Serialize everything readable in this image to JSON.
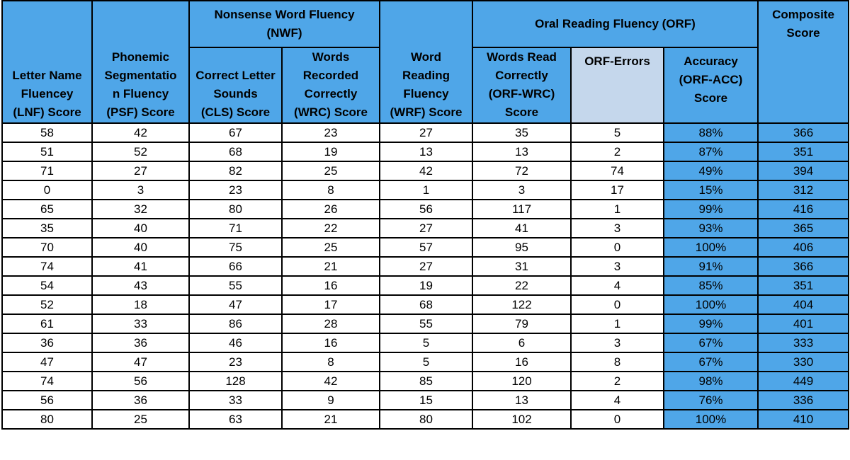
{
  "table": {
    "group_headers": {
      "nwf": "Nonsense Word Fluency\n(NWF)",
      "orf": "Oral Reading Fluency (ORF)"
    },
    "columns": [
      {
        "key": "lnf",
        "label": "Letter Name\nFluencey\n(LNF) Score"
      },
      {
        "key": "psf",
        "label": "Phonemic\nSegmentatio\nn Fluency\n(PSF) Score"
      },
      {
        "key": "cls",
        "label": "Correct Letter\nSounds\n(CLS) Score"
      },
      {
        "key": "wrc",
        "label": "Words\nRecorded\nCorrectly\n(WRC) Score"
      },
      {
        "key": "wrf",
        "label": "Word\nReading\nFluency\n(WRF) Score"
      },
      {
        "key": "orf_wrc",
        "label": "Words Read\nCorrectly\n(ORF-WRC)\nScore"
      },
      {
        "key": "orf_err",
        "label": "ORF-Errors"
      },
      {
        "key": "orf_acc",
        "label": "Accuracy\n(ORF-ACC)\nScore"
      },
      {
        "key": "composite",
        "label": "Composite\nScore"
      }
    ],
    "rows": [
      [
        "58",
        "42",
        "67",
        "23",
        "27",
        "35",
        "5",
        "88%",
        "366"
      ],
      [
        "51",
        "52",
        "68",
        "19",
        "13",
        "13",
        "2",
        "87%",
        "351"
      ],
      [
        "71",
        "27",
        "82",
        "25",
        "42",
        "72",
        "74",
        "49%",
        "394"
      ],
      [
        "0",
        "3",
        "23",
        "8",
        "1",
        "3",
        "17",
        "15%",
        "312"
      ],
      [
        "65",
        "32",
        "80",
        "26",
        "56",
        "117",
        "1",
        "99%",
        "416"
      ],
      [
        "35",
        "40",
        "71",
        "22",
        "27",
        "41",
        "3",
        "93%",
        "365"
      ],
      [
        "70",
        "40",
        "75",
        "25",
        "57",
        "95",
        "0",
        "100%",
        "406"
      ],
      [
        "74",
        "41",
        "66",
        "21",
        "27",
        "31",
        "3",
        "91%",
        "366"
      ],
      [
        "54",
        "43",
        "55",
        "16",
        "19",
        "22",
        "4",
        "85%",
        "351"
      ],
      [
        "52",
        "18",
        "47",
        "17",
        "68",
        "122",
        "0",
        "100%",
        "404"
      ],
      [
        "61",
        "33",
        "86",
        "28",
        "55",
        "79",
        "1",
        "99%",
        "401"
      ],
      [
        "36",
        "36",
        "46",
        "16",
        "5",
        "6",
        "3",
        "67%",
        "333"
      ],
      [
        "47",
        "47",
        "23",
        "8",
        "5",
        "16",
        "8",
        "67%",
        "330"
      ],
      [
        "74",
        "56",
        "128",
        "42",
        "85",
        "120",
        "2",
        "98%",
        "449"
      ],
      [
        "56",
        "36",
        "33",
        "9",
        "15",
        "13",
        "4",
        "76%",
        "336"
      ],
      [
        "80",
        "25",
        "63",
        "21",
        "80",
        "102",
        "0",
        "100%",
        "410"
      ]
    ]
  },
  "colors": {
    "header_blue": "#4fa6e8",
    "errors_header": "#c5d7ec",
    "border": "#000000"
  }
}
